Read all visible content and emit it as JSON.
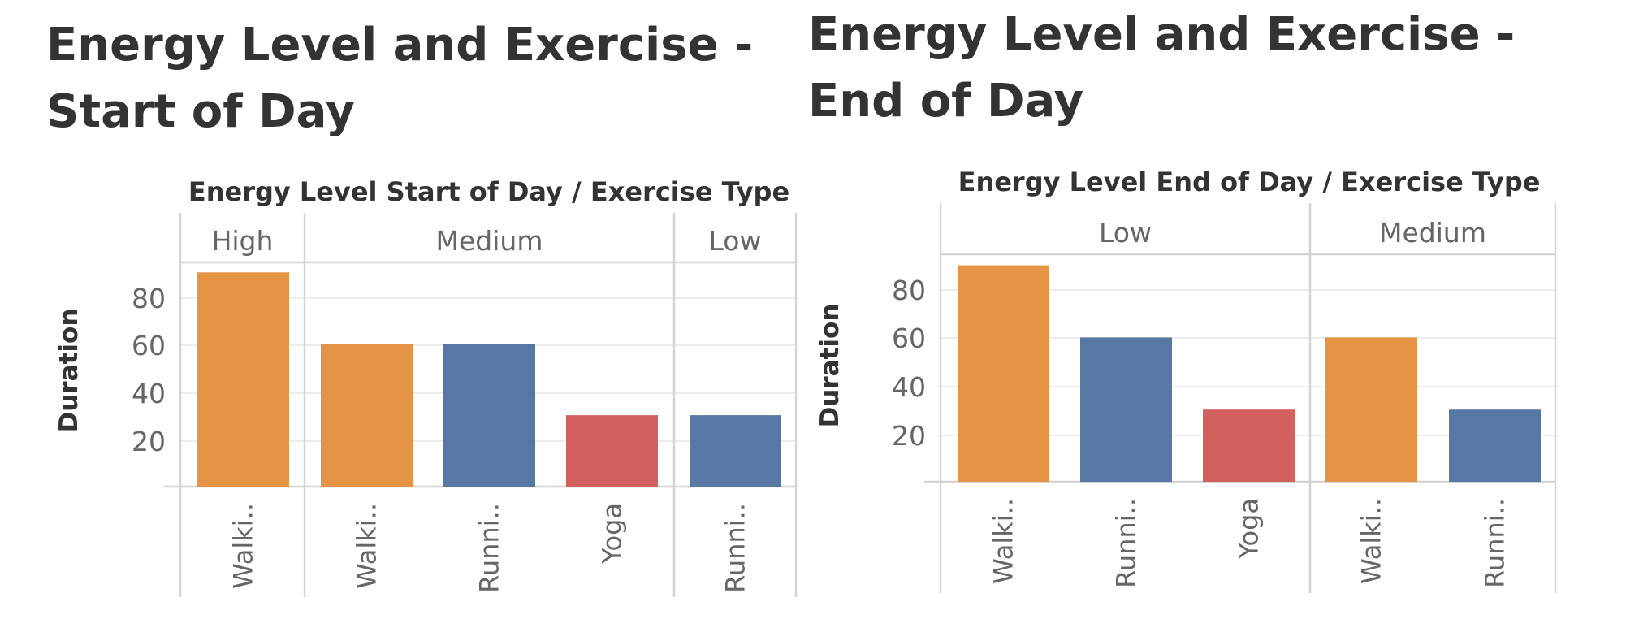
{
  "charts": [
    {
      "id": "left",
      "title": "Energy Level and Exercise - Start of Day",
      "header_title": "Energy Level Start of Day  /  Exercise Type",
      "ylabel": "Duration"
    },
    {
      "id": "right",
      "title": "Energy Level and Exercise - End of Day",
      "header_title": "Energy Level End of Day  /  Exercise Type",
      "ylabel": "Duration"
    }
  ],
  "colors": {
    "Walking": "#e49444",
    "Running": "#5778a4",
    "Yoga": "#d1605e"
  },
  "chart_data": [
    {
      "type": "bar",
      "title": "Energy Level and Exercise - Start of Day",
      "xlabel": "Energy Level Start of Day / Exercise Type",
      "ylabel": "Duration",
      "yticks": [
        20,
        40,
        60,
        80
      ],
      "ylim": [
        0,
        90
      ],
      "grid": true,
      "groups": [
        {
          "name": "High",
          "bars": [
            {
              "category": "Walking",
              "label": "Walki..",
              "value": 90
            }
          ]
        },
        {
          "name": "Medium",
          "bars": [
            {
              "category": "Walking",
              "label": "Walki..",
              "value": 60
            },
            {
              "category": "Running",
              "label": "Runni..",
              "value": 60
            },
            {
              "category": "Yoga",
              "label": "Yoga",
              "value": 30
            }
          ]
        },
        {
          "name": "Low",
          "bars": [
            {
              "category": "Running",
              "label": "Runni..",
              "value": 30
            }
          ]
        }
      ]
    },
    {
      "type": "bar",
      "title": "Energy Level and Exercise - End of Day",
      "xlabel": "Energy Level End of Day / Exercise Type",
      "ylabel": "Duration",
      "yticks": [
        20,
        40,
        60,
        80
      ],
      "ylim": [
        0,
        90
      ],
      "grid": true,
      "groups": [
        {
          "name": "Low",
          "bars": [
            {
              "category": "Walking",
              "label": "Walki..",
              "value": 90
            },
            {
              "category": "Running",
              "label": "Runni..",
              "value": 60
            },
            {
              "category": "Yoga",
              "label": "Yoga",
              "value": 30
            }
          ]
        },
        {
          "name": "Medium",
          "bars": [
            {
              "category": "Walking",
              "label": "Walki..",
              "value": 60
            },
            {
              "category": "Running",
              "label": "Runni..",
              "value": 30
            }
          ]
        }
      ]
    }
  ]
}
